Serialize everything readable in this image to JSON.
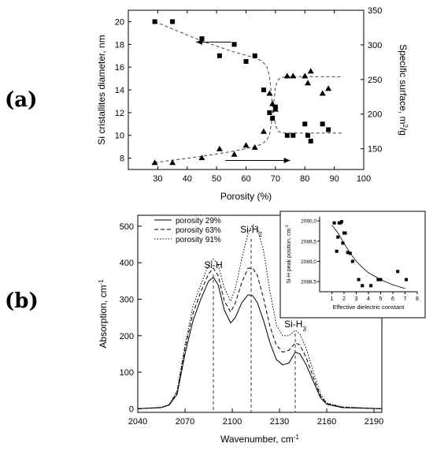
{
  "panels": {
    "a_label": "(a)",
    "b_label": "(b)"
  },
  "chart_data": [
    {
      "type": "scatter",
      "xlabel": "Porosity (%)",
      "ylabel_left": "Si cristallites diameter, nm",
      "ylabel_right_parts": [
        "Specific surface, m",
        "2",
        "/g"
      ],
      "xlim": [
        20,
        100
      ],
      "xticks": [
        30,
        40,
        50,
        60,
        70,
        80,
        90,
        100
      ],
      "ylim_left": [
        7,
        21
      ],
      "yticks_left": [
        8,
        10,
        12,
        14,
        16,
        18,
        20
      ],
      "ylim_right": [
        120,
        350
      ],
      "yticks_right": [
        150,
        200,
        250,
        300,
        350
      ],
      "series": [
        {
          "marker": "square",
          "axis": "left",
          "x": [
            29,
            35,
            45,
            51,
            56,
            60,
            63,
            66,
            68,
            69,
            70,
            74,
            76,
            80,
            81,
            82,
            86,
            88
          ],
          "y": [
            20,
            20,
            18.5,
            17,
            18,
            16.5,
            17,
            14,
            12,
            11.5,
            12.5,
            10,
            10,
            11,
            10,
            9.5,
            11,
            10.5
          ]
        },
        {
          "marker": "triangle",
          "axis": "right",
          "x": [
            29,
            35,
            45,
            51,
            56,
            60,
            63,
            66,
            68,
            69,
            70,
            74,
            76,
            80,
            81,
            82,
            86,
            88
          ],
          "y": [
            130,
            130,
            137,
            150,
            142,
            155,
            152,
            175,
            230,
            215,
            207,
            255,
            255,
            255,
            245,
            262,
            230,
            237
          ]
        }
      ],
      "fit_lines": [
        {
          "axis": "left",
          "x": [
            29,
            45,
            55,
            62,
            65,
            67,
            68,
            69,
            70,
            71,
            72,
            74,
            93
          ],
          "y": [
            20,
            18.3,
            17.4,
            16.9,
            16.6,
            16.1,
            15.2,
            12.6,
            10.9,
            10.35,
            10.25,
            10.2,
            10.2
          ]
        },
        {
          "axis": "right",
          "x": [
            29,
            45,
            55,
            62,
            65,
            67,
            68,
            69,
            70,
            71,
            72,
            74,
            93
          ],
          "y": [
            130,
            139,
            146,
            152,
            156,
            162,
            170,
            198,
            240,
            250,
            253,
            254,
            254
          ]
        }
      ],
      "arrows": [
        {
          "direction": "left",
          "x_from": 55,
          "x_to": 43,
          "y_left": 18.2
        },
        {
          "direction": "right",
          "x_from": 53,
          "x_to": 75,
          "y_left": 7.8
        }
      ]
    },
    {
      "type": "line",
      "xlabel": "Wavenumber, cm",
      "xlabel_sup": "-1",
      "ylabel": "Absorption, cm",
      "ylabel_sup": "-1",
      "xlim": [
        2040,
        2195
      ],
      "xticks": [
        2040,
        2070,
        2100,
        2130,
        2160,
        2190
      ],
      "ylim": [
        -10,
        530
      ],
      "yticks": [
        0,
        100,
        200,
        300,
        400,
        500
      ],
      "series": [
        {
          "name": "porosity 29%",
          "style": "solid",
          "x": [
            2040,
            2055,
            2060,
            2065,
            2070,
            2075,
            2080,
            2085,
            2088,
            2091,
            2095,
            2099,
            2102,
            2106,
            2110,
            2113,
            2116,
            2120,
            2124,
            2128,
            2132,
            2136,
            2140,
            2143,
            2147,
            2152,
            2156,
            2160,
            2170,
            2195
          ],
          "y": [
            0,
            3,
            10,
            40,
            150,
            240,
            300,
            350,
            360,
            340,
            270,
            235,
            250,
            290,
            312,
            310,
            290,
            240,
            180,
            135,
            120,
            125,
            155,
            150,
            120,
            70,
            30,
            12,
            3,
            0
          ]
        },
        {
          "name": "porosity 63%",
          "style": "dashed",
          "x": [
            2040,
            2055,
            2060,
            2065,
            2070,
            2075,
            2080,
            2085,
            2088,
            2091,
            2095,
            2099,
            2102,
            2106,
            2110,
            2113,
            2116,
            2120,
            2124,
            2128,
            2132,
            2136,
            2140,
            2143,
            2147,
            2152,
            2156,
            2160,
            2170,
            2195
          ],
          "y": [
            0,
            3,
            11,
            45,
            165,
            260,
            320,
            370,
            385,
            365,
            295,
            265,
            290,
            345,
            385,
            385,
            365,
            300,
            225,
            175,
            155,
            160,
            180,
            175,
            140,
            80,
            35,
            14,
            4,
            0
          ]
        },
        {
          "name": "porosity 91%",
          "style": "dotted",
          "x": [
            2040,
            2055,
            2060,
            2065,
            2070,
            2075,
            2080,
            2085,
            2088,
            2091,
            2095,
            2099,
            2102,
            2106,
            2110,
            2113,
            2116,
            2120,
            2124,
            2128,
            2132,
            2136,
            2140,
            2143,
            2147,
            2152,
            2156,
            2160,
            2170,
            2195
          ],
          "y": [
            0,
            4,
            12,
            50,
            175,
            280,
            340,
            395,
            410,
            395,
            330,
            295,
            330,
            410,
            480,
            505,
            495,
            430,
            320,
            230,
            200,
            200,
            215,
            205,
            165,
            95,
            40,
            16,
            5,
            0
          ]
        }
      ],
      "annotations": [
        {
          "text": "Si-H",
          "sub": "",
          "x": 2088
        },
        {
          "text": "Si-H",
          "sub": "2",
          "x": 2112
        },
        {
          "text": "Si-H",
          "sub": "3",
          "x": 2140
        }
      ],
      "inset": {
        "type": "scatter",
        "xlabel": "Effective dielectric constant",
        "ylabel": "Si-H peak position, cm",
        "ylabel_sup": "-1",
        "xlim": [
          0,
          8
        ],
        "xticks": [
          1,
          2,
          3,
          4,
          5,
          6,
          7,
          8
        ],
        "ylim": [
          2088.25,
          2090.1
        ],
        "yticks": [
          2088.5,
          2089.0,
          2089.5,
          2090.0
        ],
        "ytick_labels": [
          "2088,5",
          "2089,0",
          "2089,5",
          "2090,0"
        ],
        "points_x": [
          1.2,
          1.4,
          1.5,
          1.6,
          1.7,
          1.8,
          1.9,
          2.0,
          2.1,
          2.3,
          2.5,
          2.7,
          3.2,
          3.5,
          4.2,
          4.8,
          5.0,
          6.4,
          7.1
        ],
        "points_y": [
          2089.95,
          2089.25,
          2089.6,
          2089.95,
          2089.95,
          2089.98,
          2089.45,
          2089.7,
          2089.7,
          2089.22,
          2089.2,
          2089.0,
          2088.55,
          2088.4,
          2088.4,
          2088.55,
          2088.55,
          2088.75,
          2088.55
        ],
        "fit_x": [
          1.0,
          1.5,
          2.0,
          2.5,
          3.0,
          3.5,
          4.0,
          5.0,
          6.0,
          7.0
        ],
        "fit_y": [
          2089.9,
          2089.7,
          2089.45,
          2089.2,
          2089.0,
          2088.85,
          2088.72,
          2088.55,
          2088.42,
          2088.33
        ]
      }
    }
  ]
}
